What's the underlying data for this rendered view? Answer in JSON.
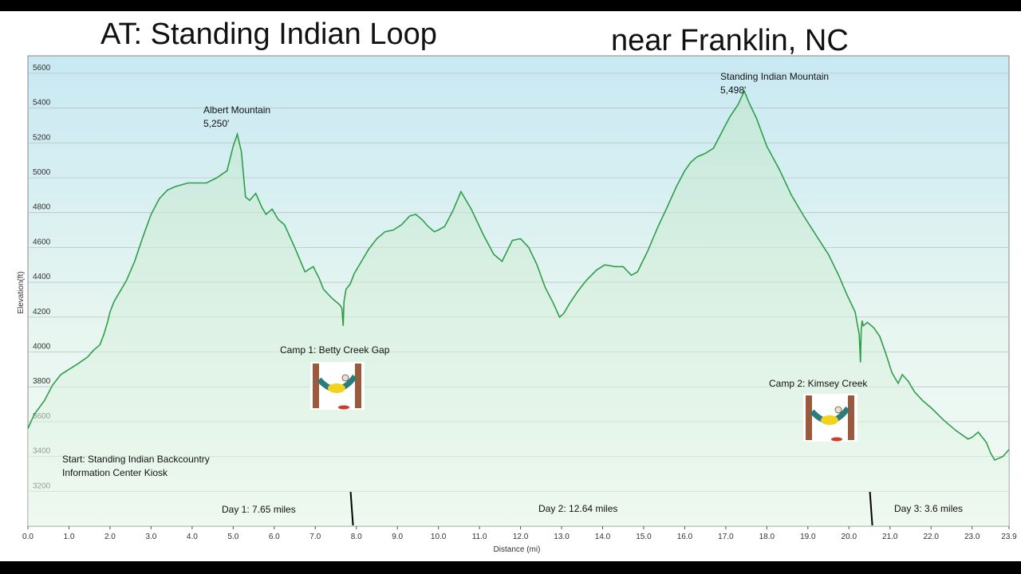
{
  "title_left": "AT:  Standing Indian Loop",
  "title_right": "near Franklin, NC",
  "chart_data": {
    "type": "area",
    "xlabel": "Distance  (mi)",
    "ylabel": "Elevation(ft)",
    "xlim": [
      0,
      23.9
    ],
    "ylim": [
      3000,
      5700
    ],
    "xticks": [
      "0.0",
      "1.0",
      "2.0",
      "3.0",
      "4.0",
      "5.0",
      "6.0",
      "7.0",
      "8.0",
      "9.0",
      "10.0",
      "11.0",
      "12.0",
      "13.0",
      "14.0",
      "15.0",
      "16.0",
      "17.0",
      "18.0",
      "19.0",
      "20.0",
      "21.0",
      "22.0",
      "23.0",
      "23.9"
    ],
    "yticks": [
      "3200",
      "3400",
      "3600",
      "3800",
      "4000",
      "4200",
      "4400",
      "4600",
      "4800",
      "5000",
      "5200",
      "5400",
      "5600"
    ],
    "grid": true,
    "line_color": "#2e9e4a",
    "series": [
      {
        "x": [
          0,
          0.15,
          0.4,
          0.6,
          0.8,
          1.0,
          1.2,
          1.45,
          1.6,
          1.75,
          1.85,
          1.95,
          2.0,
          2.1,
          2.4,
          2.6,
          2.8,
          3.0,
          3.2,
          3.4,
          3.6,
          3.9,
          4.1,
          4.35,
          4.6,
          4.85,
          5.0,
          5.1,
          5.2,
          5.3,
          5.4,
          5.55,
          5.7,
          5.8,
          5.95,
          6.1,
          6.25,
          6.5,
          6.75,
          6.95,
          7.1,
          7.2,
          7.4,
          7.6,
          7.65,
          7.68,
          7.7,
          7.75,
          7.85,
          7.95,
          8.1,
          8.3,
          8.5,
          8.7,
          8.9,
          9.1,
          9.3,
          9.45,
          9.6,
          9.75,
          9.9,
          10.0,
          10.15,
          10.35,
          10.55,
          10.8,
          11.1,
          11.35,
          11.55,
          11.8,
          12.0,
          12.2,
          12.4,
          12.6,
          12.8,
          12.95,
          13.05,
          13.2,
          13.4,
          13.6,
          13.85,
          14.05,
          14.3,
          14.5,
          14.7,
          14.85,
          15.1,
          15.35,
          15.55,
          15.8,
          16.0,
          16.15,
          16.3,
          16.5,
          16.7,
          16.9,
          17.1,
          17.3,
          17.45,
          17.55,
          17.75,
          18.0,
          18.3,
          18.6,
          18.9,
          19.2,
          19.5,
          19.75,
          19.95,
          20.15,
          20.25,
          20.28,
          20.3,
          20.32,
          20.35,
          20.45,
          20.6,
          20.75,
          20.9,
          21.05,
          21.2,
          21.3,
          21.45,
          21.6,
          21.8,
          22.0,
          22.3,
          22.6,
          22.9,
          23.0,
          23.15,
          23.35,
          23.45,
          23.55,
          23.75,
          23.9
        ],
        "y": [
          3560,
          3640,
          3720,
          3810,
          3870,
          3900,
          3930,
          3970,
          4010,
          4040,
          4100,
          4180,
          4230,
          4290,
          4410,
          4520,
          4660,
          4790,
          4880,
          4930,
          4950,
          4970,
          4970,
          4970,
          5000,
          5040,
          5180,
          5250,
          5150,
          4890,
          4870,
          4910,
          4830,
          4790,
          4820,
          4760,
          4730,
          4600,
          4460,
          4490,
          4420,
          4360,
          4310,
          4270,
          4250,
          4150,
          4290,
          4360,
          4390,
          4450,
          4510,
          4590,
          4650,
          4690,
          4700,
          4730,
          4780,
          4790,
          4760,
          4720,
          4690,
          4700,
          4720,
          4810,
          4920,
          4820,
          4670,
          4560,
          4520,
          4640,
          4650,
          4600,
          4500,
          4370,
          4280,
          4200,
          4220,
          4280,
          4350,
          4410,
          4470,
          4500,
          4490,
          4490,
          4440,
          4460,
          4580,
          4720,
          4820,
          4950,
          5040,
          5090,
          5120,
          5140,
          5170,
          5260,
          5350,
          5420,
          5498,
          5440,
          5340,
          5180,
          5050,
          4900,
          4780,
          4670,
          4560,
          4440,
          4330,
          4230,
          4100,
          3940,
          4130,
          4180,
          4150,
          4170,
          4140,
          4090,
          3990,
          3880,
          3820,
          3870,
          3830,
          3770,
          3720,
          3680,
          3610,
          3550,
          3500,
          3510,
          3540,
          3480,
          3420,
          3380,
          3400,
          3440
        ]
      }
    ],
    "day_markers": [
      7.9,
      20.55
    ],
    "annotations": [
      {
        "text": "Albert Mountain",
        "x": 5.1,
        "y": 5250
      },
      {
        "text": "5,250'",
        "x": 5.1,
        "y": 5250
      },
      {
        "text": "Standing Indian Mountain",
        "x": 17.45,
        "y": 5498
      },
      {
        "text": "5,498'",
        "x": 17.45,
        "y": 5498
      }
    ],
    "labels": {
      "albert_name": "Albert Mountain",
      "albert_elev": "5,250'",
      "standing_name": "Standing Indian Mountain",
      "standing_elev": "5,498'",
      "camp1": "Camp 1:  Betty Creek Gap",
      "camp2": "Camp 2: Kimsey Creek",
      "start_line1": "Start:  Standing Indian Backcountry",
      "start_line2": "Information Center Kiosk",
      "day1": "Day 1:  7.65 miles",
      "day2": "Day 2:  12.64 miles",
      "day3": "Day 3: 3.6 miles"
    }
  }
}
